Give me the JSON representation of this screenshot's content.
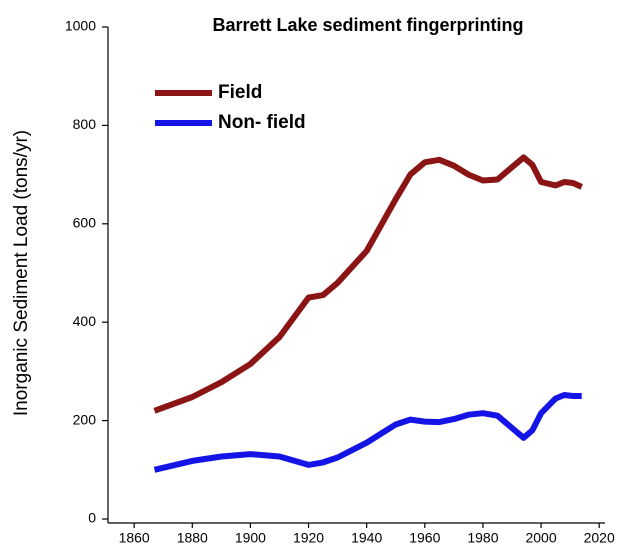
{
  "chart_data": {
    "type": "line",
    "title": "Barrett Lake sediment fingerprinting",
    "y_label": "Inorganic Sediment Load (tons/yr)",
    "x": [
      1867,
      1880,
      1890,
      1900,
      1910,
      1920,
      1925,
      1930,
      1940,
      1950,
      1955,
      1960,
      1965,
      1970,
      1975,
      1980,
      1985,
      1990,
      1994,
      1997,
      2000,
      2005,
      2008,
      2011,
      2014
    ],
    "series": [
      {
        "name": "Field",
        "color": "#8b1414",
        "values": [
          220,
          248,
          278,
          315,
          370,
          450,
          455,
          480,
          545,
          650,
          700,
          725,
          730,
          718,
          700,
          688,
          690,
          715,
          735,
          720,
          685,
          678,
          685,
          683,
          675
        ]
      },
      {
        "name": "Non- field",
        "color": "#1414e6",
        "values": [
          100,
          118,
          127,
          132,
          127,
          110,
          115,
          125,
          155,
          192,
          202,
          198,
          197,
          203,
          212,
          215,
          210,
          185,
          165,
          180,
          215,
          245,
          252,
          250,
          250
        ]
      }
    ],
    "xlim": [
      1851,
      2022
    ],
    "xticks": [
      1860,
      1880,
      1900,
      1920,
      1940,
      1960,
      1980,
      2000,
      2020
    ],
    "ylim": [
      0,
      1000
    ],
    "yticks": [
      0,
      200,
      400,
      600,
      800,
      1000
    ],
    "grid": false,
    "legend": "upper left"
  }
}
